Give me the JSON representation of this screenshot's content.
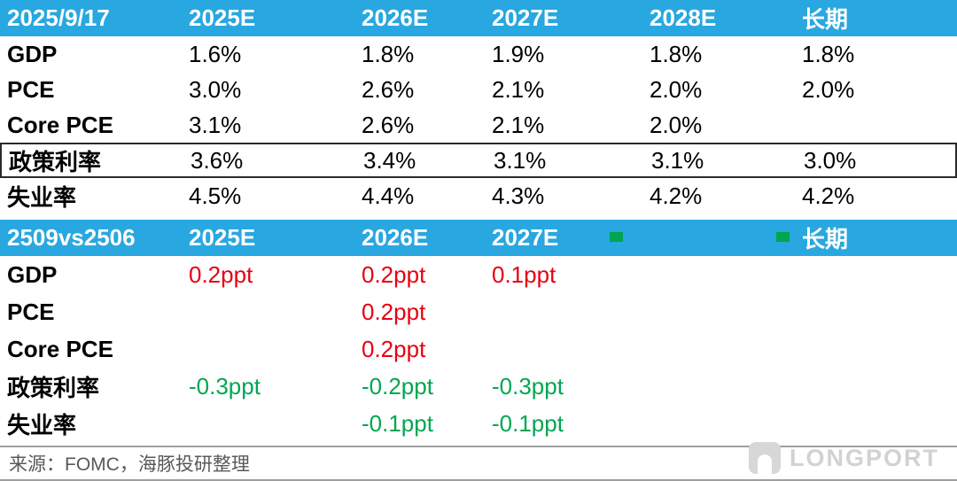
{
  "colors": {
    "header_blue": "#29A7E0",
    "upward_revision_red": "#E60012",
    "downward_revision_green": "#00A650",
    "footer_gray": "#595959",
    "watermark_gray": "#D2D2D2"
  },
  "chart_data": [
    {
      "type": "table",
      "name": "fomc_projections_2025_09_17",
      "columns": [
        "2025/9/17",
        "2025E",
        "2026E",
        "2027E",
        "2028E",
        "长期"
      ],
      "rows": [
        [
          "GDP",
          "1.6%",
          "1.8%",
          "1.9%",
          "1.8%",
          "1.8%"
        ],
        [
          "PCE",
          "3.0%",
          "2.6%",
          "2.1%",
          "2.0%",
          "2.0%"
        ],
        [
          "Core PCE",
          "3.1%",
          "2.6%",
          "2.1%",
          "2.0%",
          ""
        ],
        [
          "政策利率",
          "3.6%",
          "3.4%",
          "3.1%",
          "3.1%",
          "3.0%"
        ],
        [
          "失业率",
          "4.5%",
          "4.4%",
          "4.3%",
          "4.2%",
          "4.2%"
        ]
      ],
      "highlighted_row": "政策利率"
    },
    {
      "type": "table",
      "name": "revision_2509_vs_2506",
      "columns": [
        "2509vs2506",
        "2025E",
        "2026E",
        "2027E",
        "",
        "长期"
      ],
      "rows": [
        [
          "GDP",
          "0.2ppt",
          "0.2ppt",
          "0.1ppt",
          "",
          ""
        ],
        [
          "PCE",
          "",
          "0.2ppt",
          "",
          "",
          ""
        ],
        [
          "Core PCE",
          "",
          "0.2ppt",
          "",
          "",
          ""
        ],
        [
          "政策利率",
          "-0.3ppt",
          "-0.2ppt",
          "-0.3ppt",
          "",
          ""
        ],
        [
          "失业率",
          "",
          "-0.1ppt",
          "-0.1ppt",
          "",
          ""
        ]
      ],
      "value_color_note": "positive revisions red, negative revisions green"
    }
  ],
  "footer": {
    "source_text": "来源：FOMC，海豚投研整理",
    "watermark_text": "LONGPORT"
  }
}
